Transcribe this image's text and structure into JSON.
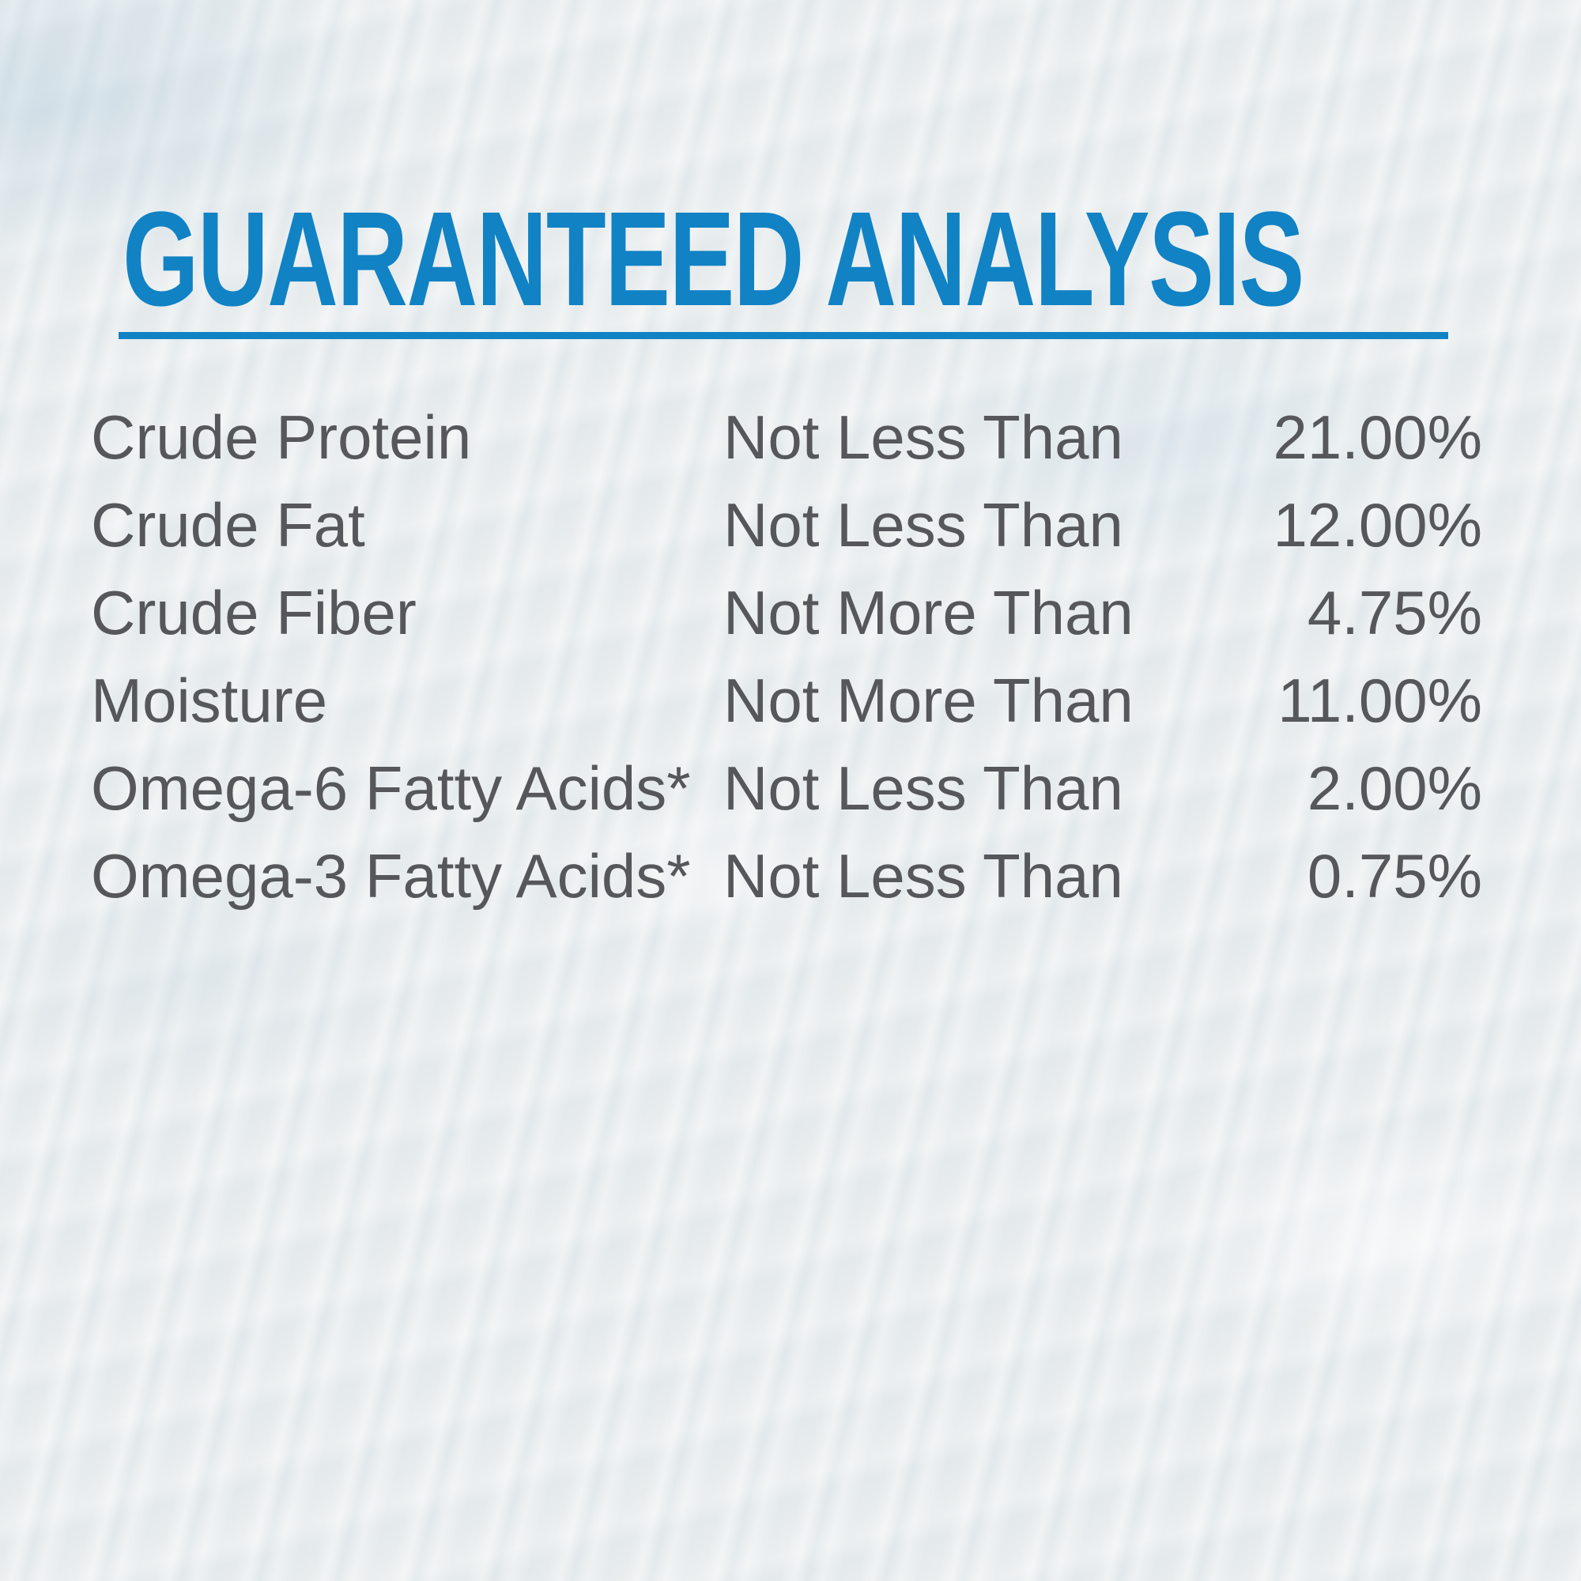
{
  "page": {
    "background_color": "#e8eced",
    "text_color": "#55575a"
  },
  "header": {
    "title": "GUARANTEED ANALYSIS",
    "accent_color": "#1182c4",
    "underline": true
  },
  "table": {
    "rows": [
      {
        "nutrient": "Crude Protein",
        "qualifier": "Not Less Than",
        "value": "21.00%"
      },
      {
        "nutrient": "Crude Fat",
        "qualifier": "Not Less Than",
        "value": "12.00%"
      },
      {
        "nutrient": "Crude Fiber",
        "qualifier": "Not More Than",
        "value": "4.75%"
      },
      {
        "nutrient": "Moisture",
        "qualifier": "Not More Than",
        "value": "11.00%"
      },
      {
        "nutrient": "Omega-6 Fatty Acids*",
        "qualifier": "Not Less Than",
        "value": "2.00%"
      },
      {
        "nutrient": "Omega-3 Fatty Acids*",
        "qualifier": "Not Less Than",
        "value": "0.75%"
      }
    ]
  }
}
